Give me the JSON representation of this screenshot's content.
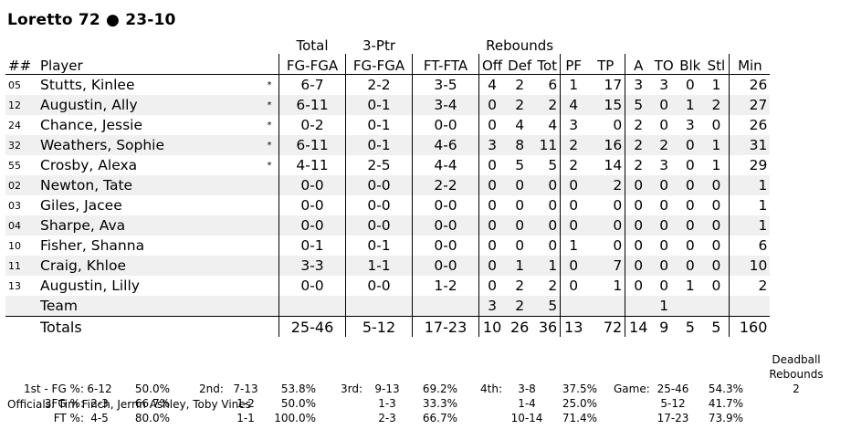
{
  "title": "Loretto 72 ● 23-10",
  "header": {
    "total": "Total",
    "threeptr": "3-Ptr",
    "rebounds": "Rebounds",
    "num": "##",
    "player": "Player",
    "fg": "FG-FGA",
    "fg3": "FG-FGA",
    "ft": "FT-FTA",
    "off": "Off",
    "def": "Def",
    "tot": "Tot",
    "pf": "PF",
    "tp": "TP",
    "a": "A",
    "to": "TO",
    "blk": "Blk",
    "stl": "Stl",
    "min": "Min"
  },
  "players": [
    {
      "num": "05",
      "name": "Stutts, Kinlee",
      "starter": "*",
      "fg": "6-7",
      "fg3": "2-2",
      "ft": "3-5",
      "off": "4",
      "def": "2",
      "tot": "6",
      "pf": "1",
      "tp": "17",
      "a": "3",
      "to": "3",
      "blk": "0",
      "stl": "1",
      "min": "26"
    },
    {
      "num": "12",
      "name": "Augustin, Ally",
      "starter": "*",
      "fg": "6-11",
      "fg3": "0-1",
      "ft": "3-4",
      "off": "0",
      "def": "2",
      "tot": "2",
      "pf": "4",
      "tp": "15",
      "a": "5",
      "to": "0",
      "blk": "1",
      "stl": "2",
      "min": "27"
    },
    {
      "num": "24",
      "name": "Chance, Jessie",
      "starter": "*",
      "fg": "0-2",
      "fg3": "0-1",
      "ft": "0-0",
      "off": "0",
      "def": "4",
      "tot": "4",
      "pf": "3",
      "tp": "0",
      "a": "2",
      "to": "0",
      "blk": "3",
      "stl": "0",
      "min": "26"
    },
    {
      "num": "32",
      "name": "Weathers, Sophie",
      "starter": "*",
      "fg": "6-11",
      "fg3": "0-1",
      "ft": "4-6",
      "off": "3",
      "def": "8",
      "tot": "11",
      "pf": "2",
      "tp": "16",
      "a": "2",
      "to": "2",
      "blk": "0",
      "stl": "1",
      "min": "31"
    },
    {
      "num": "55",
      "name": "Crosby, Alexa",
      "starter": "*",
      "fg": "4-11",
      "fg3": "2-5",
      "ft": "4-4",
      "off": "0",
      "def": "5",
      "tot": "5",
      "pf": "2",
      "tp": "14",
      "a": "2",
      "to": "3",
      "blk": "0",
      "stl": "1",
      "min": "29"
    },
    {
      "num": "02",
      "name": "Newton, Tate",
      "starter": "",
      "fg": "0-0",
      "fg3": "0-0",
      "ft": "2-2",
      "off": "0",
      "def": "0",
      "tot": "0",
      "pf": "0",
      "tp": "2",
      "a": "0",
      "to": "0",
      "blk": "0",
      "stl": "0",
      "min": "1"
    },
    {
      "num": "03",
      "name": "Giles, Jacee",
      "starter": "",
      "fg": "0-0",
      "fg3": "0-0",
      "ft": "0-0",
      "off": "0",
      "def": "0",
      "tot": "0",
      "pf": "0",
      "tp": "0",
      "a": "0",
      "to": "0",
      "blk": "0",
      "stl": "0",
      "min": "1"
    },
    {
      "num": "04",
      "name": "Sharpe, Ava",
      "starter": "",
      "fg": "0-0",
      "fg3": "0-0",
      "ft": "0-0",
      "off": "0",
      "def": "0",
      "tot": "0",
      "pf": "0",
      "tp": "0",
      "a": "0",
      "to": "0",
      "blk": "0",
      "stl": "0",
      "min": "1"
    },
    {
      "num": "10",
      "name": "Fisher, Shanna",
      "starter": "",
      "fg": "0-1",
      "fg3": "0-1",
      "ft": "0-0",
      "off": "0",
      "def": "0",
      "tot": "0",
      "pf": "1",
      "tp": "0",
      "a": "0",
      "to": "0",
      "blk": "0",
      "stl": "0",
      "min": "6"
    },
    {
      "num": "11",
      "name": "Craig, Khloe",
      "starter": "",
      "fg": "3-3",
      "fg3": "1-1",
      "ft": "0-0",
      "off": "0",
      "def": "1",
      "tot": "1",
      "pf": "0",
      "tp": "7",
      "a": "0",
      "to": "0",
      "blk": "0",
      "stl": "0",
      "min": "10"
    },
    {
      "num": "13",
      "name": "Augustin, Lilly",
      "starter": "",
      "fg": "0-0",
      "fg3": "0-0",
      "ft": "1-2",
      "off": "0",
      "def": "2",
      "tot": "2",
      "pf": "0",
      "tp": "1",
      "a": "0",
      "to": "0",
      "blk": "1",
      "stl": "0",
      "min": "2"
    }
  ],
  "team": {
    "name": "Team",
    "off": "3",
    "def": "2",
    "tot": "5",
    "to": "1"
  },
  "totals": {
    "name": "Totals",
    "fg": "25-46",
    "fg3": "5-12",
    "ft": "17-23",
    "off": "10",
    "def": "26",
    "tot": "36",
    "pf": "13",
    "tp": "72",
    "a": "14",
    "to": "9",
    "blk": "5",
    "stl": "5",
    "min": "160"
  },
  "percentages": {
    "first": {
      "rows": [
        {
          "label": "1st - FG %:",
          "made": "6-12",
          "pct": "50.0%"
        },
        {
          "label": "3FG %:",
          "made": "2-3",
          "pct": "66.7%"
        },
        {
          "label": "FT %:",
          "made": "4-5",
          "pct": "80.0%"
        }
      ]
    },
    "second": {
      "label": "2nd:",
      "rows": [
        {
          "made": "7-13",
          "pct": "53.8%"
        },
        {
          "made": "1-2",
          "pct": "50.0%"
        },
        {
          "made": "1-1",
          "pct": "100.0%"
        }
      ]
    },
    "third": {
      "label": "3rd:",
      "rows": [
        {
          "made": "9-13",
          "pct": "69.2%"
        },
        {
          "made": "1-3",
          "pct": "33.3%"
        },
        {
          "made": "2-3",
          "pct": "66.7%"
        }
      ]
    },
    "fourth": {
      "label": "4th:",
      "rows": [
        {
          "made": "3-8",
          "pct": "37.5%"
        },
        {
          "made": "1-4",
          "pct": "25.0%"
        },
        {
          "made": "10-14",
          "pct": "71.4%"
        }
      ]
    },
    "game": {
      "label": "Game:",
      "rows": [
        {
          "made": "25-46",
          "pct": "54.3%"
        },
        {
          "made": "5-12",
          "pct": "41.7%"
        },
        {
          "made": "17-23",
          "pct": "73.9%"
        }
      ]
    }
  },
  "deadball": {
    "line1": "Deadball",
    "line2": "Rebounds",
    "value": "2"
  },
  "officials": "Officials: Tim Finch, Jerrin Ashley, Toby Vines"
}
